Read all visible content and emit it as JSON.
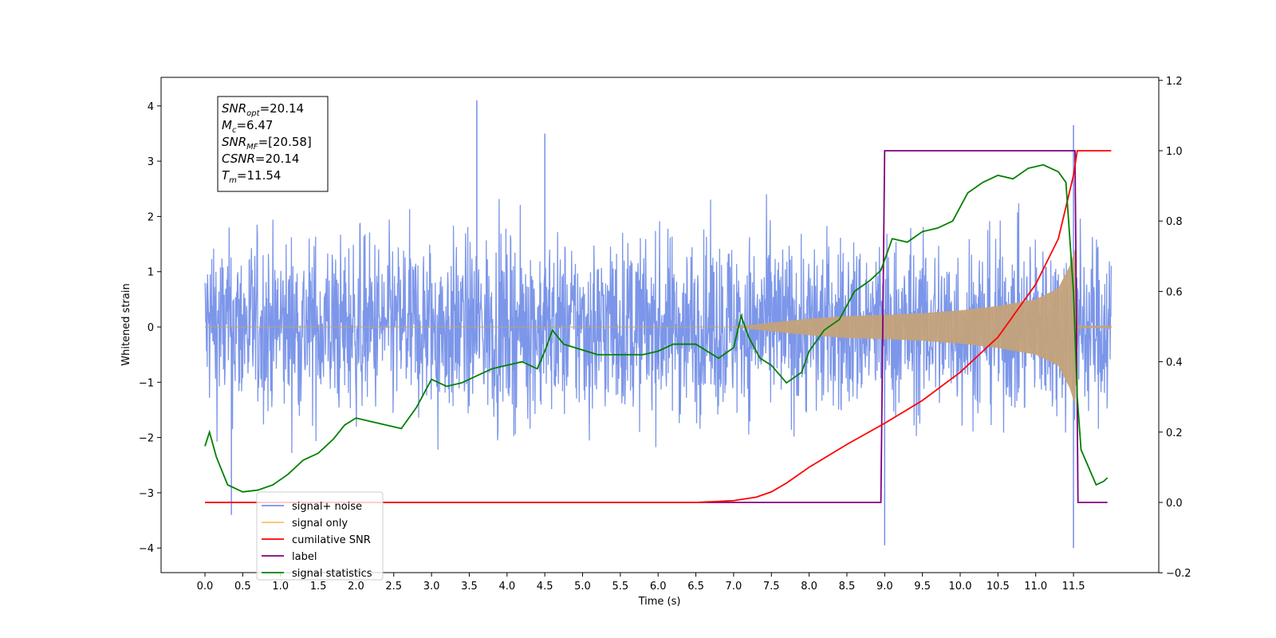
{
  "chart_data": {
    "type": "line",
    "xlabel": "Time (s)",
    "ylabel": "Whitened strain",
    "xlim": [
      -0.6,
      12.6
    ],
    "ylim": [
      -4.4,
      4.5
    ],
    "ylim_right": [
      -0.2,
      1.2
    ],
    "x_ticks": [
      "0.0",
      "0.5",
      "1.0",
      "1.5",
      "2.0",
      "2.5",
      "3.0",
      "3.5",
      "4.0",
      "4.5",
      "5.0",
      "5.5",
      "6.0",
      "6.5",
      "7.0",
      "7.5",
      "8.0",
      "8.5",
      "9.0",
      "9.5",
      "10.0",
      "10.5",
      "11.0",
      "11.5"
    ],
    "y_ticks": [
      "4",
      "3",
      "2",
      "1",
      "0",
      "−1",
      "−2",
      "−3",
      "−4"
    ],
    "y_ticks_right": [
      "1.2",
      "1.0",
      "0.8",
      "0.6",
      "0.4",
      "0.2",
      "0.0",
      "−0.2"
    ],
    "annotation": [
      {
        "base": "SNR",
        "sub": "opt",
        "value": "=20.14"
      },
      {
        "base": "M",
        "sub": "c",
        "value": "=6.47"
      },
      {
        "base": "SNR",
        "sub": "MF",
        "value": "=[20.58]"
      },
      {
        "base": "CSNR",
        "sub": "",
        "value": "=20.14"
      },
      {
        "base": "T",
        "sub": "m",
        "value": "=11.54"
      }
    ],
    "legend": {
      "placement": "lower-left",
      "entries": [
        {
          "label": "signal+ noise",
          "color": "#7590e8"
        },
        {
          "label": "signal only",
          "color": "#ffbf66"
        },
        {
          "label": "cumilative SNR",
          "color": "#ff0000"
        },
        {
          "label": "label",
          "color": "#800080"
        },
        {
          "label": "signal statistics",
          "color": "#008000"
        }
      ]
    },
    "series": [
      {
        "name": "signal+ noise",
        "axis": "left",
        "color": "#7590e8",
        "noise_std": 0.8,
        "x_range": [
          0.0,
          12.0
        ],
        "notable_peaks": [
          [
            3.6,
            4.1
          ],
          [
            4.5,
            3.5
          ],
          [
            9.0,
            -3.95
          ],
          [
            11.5,
            3.65
          ],
          [
            11.5,
            -4.0
          ],
          [
            0.35,
            -3.4
          ]
        ]
      },
      {
        "name": "signal only",
        "axis": "left",
        "color": "#c4a27a",
        "envelope": {
          "x": [
            0,
            7.0,
            7.5,
            8.0,
            8.5,
            9.0,
            9.5,
            10.0,
            10.5,
            11.0,
            11.3,
            11.45,
            11.52,
            11.56,
            12.0
          ],
          "y": [
            0,
            0,
            0.08,
            0.15,
            0.2,
            0.22,
            0.25,
            0.3,
            0.38,
            0.5,
            0.7,
            1.1,
            1.4,
            0.02,
            0.02
          ]
        }
      },
      {
        "name": "cumilative SNR",
        "axis": "right",
        "color": "#ff0000",
        "x": [
          0,
          6.5,
          7.0,
          7.3,
          7.5,
          7.7,
          8.0,
          8.5,
          9.0,
          9.5,
          10.0,
          10.5,
          11.0,
          11.3,
          11.5,
          11.55,
          12.0
        ],
        "y": [
          0,
          0,
          0.005,
          0.015,
          0.03,
          0.055,
          0.1,
          0.165,
          0.225,
          0.29,
          0.37,
          0.47,
          0.62,
          0.75,
          0.93,
          1.0,
          1.0
        ]
      },
      {
        "name": "label",
        "axis": "right",
        "color": "#800080",
        "x": [
          0,
          8.95,
          9.0,
          11.52,
          11.56,
          11.95
        ],
        "y": [
          0,
          0,
          1,
          1,
          0,
          0
        ]
      },
      {
        "name": "signal statistics",
        "axis": "right",
        "color": "#008000",
        "x": [
          0,
          0.06,
          0.15,
          0.3,
          0.5,
          0.7,
          0.9,
          1.1,
          1.3,
          1.5,
          1.7,
          1.85,
          2.0,
          2.2,
          2.4,
          2.6,
          2.8,
          3.0,
          3.2,
          3.4,
          3.6,
          3.8,
          4.0,
          4.2,
          4.4,
          4.5,
          4.6,
          4.75,
          4.9,
          5.2,
          5.5,
          5.8,
          6.0,
          6.2,
          6.5,
          6.8,
          7.0,
          7.1,
          7.2,
          7.35,
          7.5,
          7.7,
          7.9,
          8.0,
          8.2,
          8.4,
          8.6,
          8.8,
          8.95,
          9.1,
          9.3,
          9.5,
          9.7,
          9.9,
          10.1,
          10.3,
          10.5,
          10.7,
          10.9,
          11.1,
          11.2,
          11.3,
          11.4,
          11.5,
          11.55,
          11.6,
          11.7,
          11.8,
          11.9,
          11.95
        ],
        "y": [
          0.16,
          0.2,
          0.13,
          0.05,
          0.03,
          0.035,
          0.05,
          0.08,
          0.12,
          0.14,
          0.18,
          0.22,
          0.24,
          0.23,
          0.22,
          0.21,
          0.27,
          0.35,
          0.33,
          0.34,
          0.36,
          0.38,
          0.39,
          0.4,
          0.38,
          0.43,
          0.49,
          0.45,
          0.44,
          0.42,
          0.42,
          0.42,
          0.43,
          0.45,
          0.45,
          0.41,
          0.44,
          0.53,
          0.47,
          0.41,
          0.39,
          0.34,
          0.37,
          0.43,
          0.49,
          0.52,
          0.6,
          0.63,
          0.66,
          0.75,
          0.74,
          0.77,
          0.78,
          0.8,
          0.88,
          0.91,
          0.93,
          0.92,
          0.95,
          0.96,
          0.95,
          0.94,
          0.91,
          0.6,
          0.3,
          0.15,
          0.1,
          0.05,
          0.06,
          0.07
        ]
      }
    ]
  }
}
